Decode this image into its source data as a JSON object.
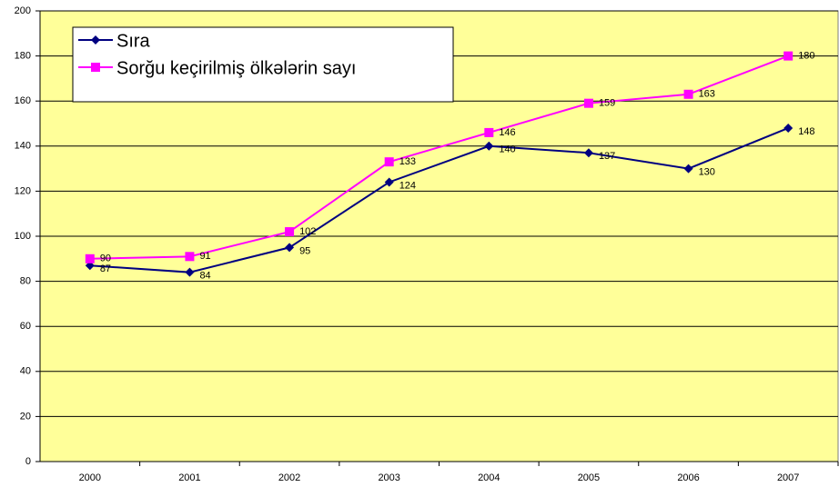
{
  "chart_data": {
    "type": "line",
    "categories": [
      "2000",
      "2001",
      "2002",
      "2003",
      "2004",
      "2005",
      "2006",
      "2007"
    ],
    "series": [
      {
        "name": "Sıra",
        "color": "#000080",
        "marker": "diamond",
        "values": [
          87,
          84,
          95,
          124,
          140,
          137,
          130,
          148
        ]
      },
      {
        "name": "Sorğu keçirilmiş ölkələrin sayı",
        "color": "#ff00ff",
        "marker": "square",
        "values": [
          90,
          91,
          102,
          133,
          146,
          159,
          163,
          180
        ]
      }
    ],
    "ylim": [
      0,
      200
    ],
    "yticks": [
      0,
      20,
      40,
      60,
      80,
      100,
      120,
      140,
      160,
      180,
      200
    ],
    "grid": true,
    "legend": "top-left",
    "background": "#ffff99"
  }
}
